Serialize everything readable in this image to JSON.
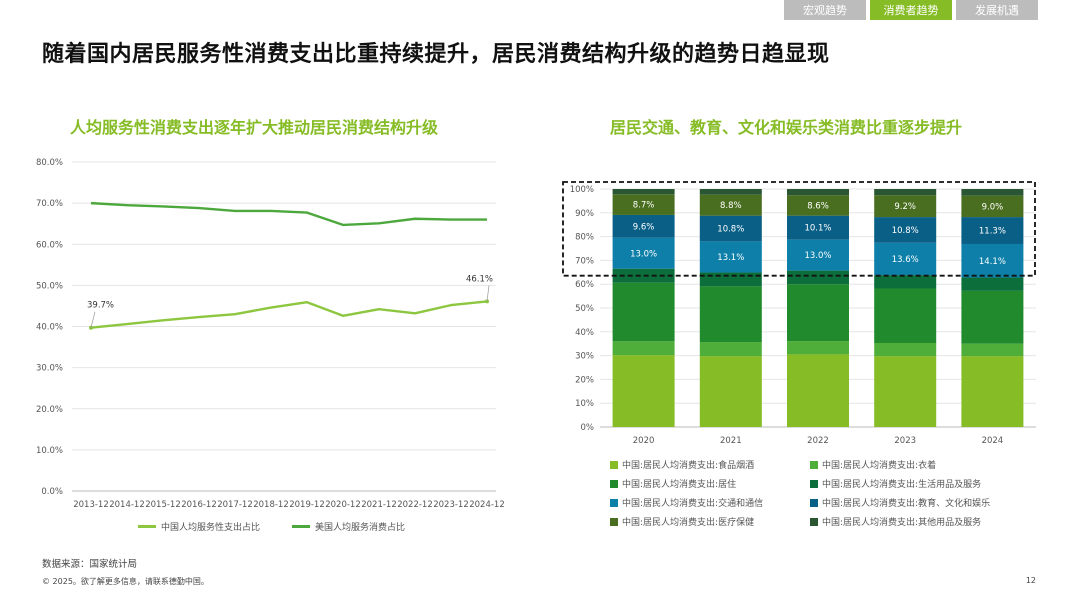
{
  "tabs": [
    {
      "label": "宏观趋势",
      "active": false
    },
    {
      "label": "消费者趋势",
      "active": true
    },
    {
      "label": "发展机遇",
      "active": false
    }
  ],
  "page_title": "随着国内居民服务性消费支出比重持续提升，居民消费结构升级的趋势日趋显现",
  "source": "数据来源：国家统计局",
  "footer": "© 2025。欲了解更多信息，请联系德勤中国。",
  "page_number": "12",
  "colors": {
    "accent": "#86bc25",
    "china_line": "#8dc63f",
    "us_line": "#4ca83c",
    "food": "#86bc25",
    "clothing": "#4fae3a",
    "housing": "#218a2c",
    "daily": "#0c6e3a",
    "transport": "#0d7fa8",
    "education": "#0a5f86",
    "medical": "#4a6e1f",
    "other": "#2a5634"
  },
  "chart_data": [
    {
      "type": "line",
      "title": "人均服务性消费支出逐年扩大推动居民消费结构升级",
      "x": [
        "2013-12",
        "2014-12",
        "2015-12",
        "2016-12",
        "2017-12",
        "2018-12",
        "2019-12",
        "2020-12",
        "2021-12",
        "2022-12",
        "2023-12",
        "2024-12"
      ],
      "ylim": [
        0,
        80
      ],
      "yticks": [
        "0.0%",
        "10.0%",
        "20.0%",
        "30.0%",
        "40.0%",
        "50.0%",
        "60.0%",
        "70.0%",
        "80.0%"
      ],
      "series": [
        {
          "name": "中国人均服务性支出占比",
          "values": [
            39.7,
            40.6,
            41.5,
            42.3,
            43.0,
            44.6,
            45.9,
            42.6,
            44.2,
            43.2,
            45.2,
            46.1
          ]
        },
        {
          "name": "美国人均服务消费占比",
          "values": [
            70.0,
            69.5,
            69.2,
            68.8,
            68.1,
            68.1,
            67.7,
            64.7,
            65.1,
            66.2,
            66.0,
            66.0
          ]
        }
      ],
      "annotations": [
        {
          "series": 0,
          "index": 0,
          "text": "39.7%"
        },
        {
          "series": 0,
          "index": 11,
          "text": "46.1%"
        }
      ],
      "grid": true,
      "legend_position": "bottom"
    },
    {
      "type": "bar",
      "stacked": true,
      "title": "居民交通、教育、文化和娱乐类消费比重逐步提升",
      "categories": [
        "2020",
        "2021",
        "2022",
        "2023",
        "2024"
      ],
      "ylim": [
        0,
        100
      ],
      "yticks": [
        "0%",
        "10%",
        "20%",
        "30%",
        "40%",
        "50%",
        "60%",
        "70%",
        "80%",
        "90%",
        "100%"
      ],
      "series": [
        {
          "name": "中国:居民人均消费支出:食品烟酒",
          "values": [
            30.2,
            29.8,
            30.5,
            29.8,
            29.8
          ],
          "labels": [
            "",
            "",
            "",
            "",
            ""
          ]
        },
        {
          "name": "中国:居民人均消费支出:衣着",
          "values": [
            5.8,
            5.9,
            5.6,
            5.5,
            5.2
          ],
          "labels": [
            "",
            "",
            "",
            "",
            ""
          ]
        },
        {
          "name": "中国:居民人均消费支出:居住",
          "values": [
            24.6,
            23.4,
            23.9,
            22.9,
            22.2
          ],
          "labels": [
            "",
            "",
            "",
            "",
            ""
          ]
        },
        {
          "name": "中国:居民人均消费支出:生活用品及服务",
          "values": [
            5.9,
            5.8,
            5.7,
            5.6,
            5.6
          ],
          "labels": [
            "",
            "",
            "",
            "",
            ""
          ]
        },
        {
          "name": "中国:居民人均消费支出:交通和通信",
          "values": [
            13.0,
            13.1,
            13.0,
            13.6,
            14.1
          ],
          "labels": [
            "13.0%",
            "13.1%",
            "13.0%",
            "13.6%",
            "14.1%"
          ]
        },
        {
          "name": "中国:居民人均消费支出:教育、文化和娱乐",
          "values": [
            9.6,
            10.8,
            10.1,
            10.8,
            11.3
          ],
          "labels": [
            "9.6%",
            "10.8%",
            "10.1%",
            "10.8%",
            "11.3%"
          ]
        },
        {
          "name": "中国:居民人均消费支出:医疗保健",
          "values": [
            8.7,
            8.8,
            8.6,
            9.2,
            9.0
          ],
          "labels": [
            "8.7%",
            "8.8%",
            "8.6%",
            "9.2%",
            "9.0%"
          ]
        },
        {
          "name": "中国:居民人均消费支出:其他用品及服务",
          "values": [
            2.2,
            2.4,
            2.6,
            2.6,
            2.8
          ],
          "labels": [
            "",
            "",
            "",
            "",
            ""
          ]
        }
      ],
      "highlight_box": {
        "from_value": 64,
        "to_value": 100,
        "style": "dashed"
      },
      "legend_position": "bottom"
    }
  ]
}
